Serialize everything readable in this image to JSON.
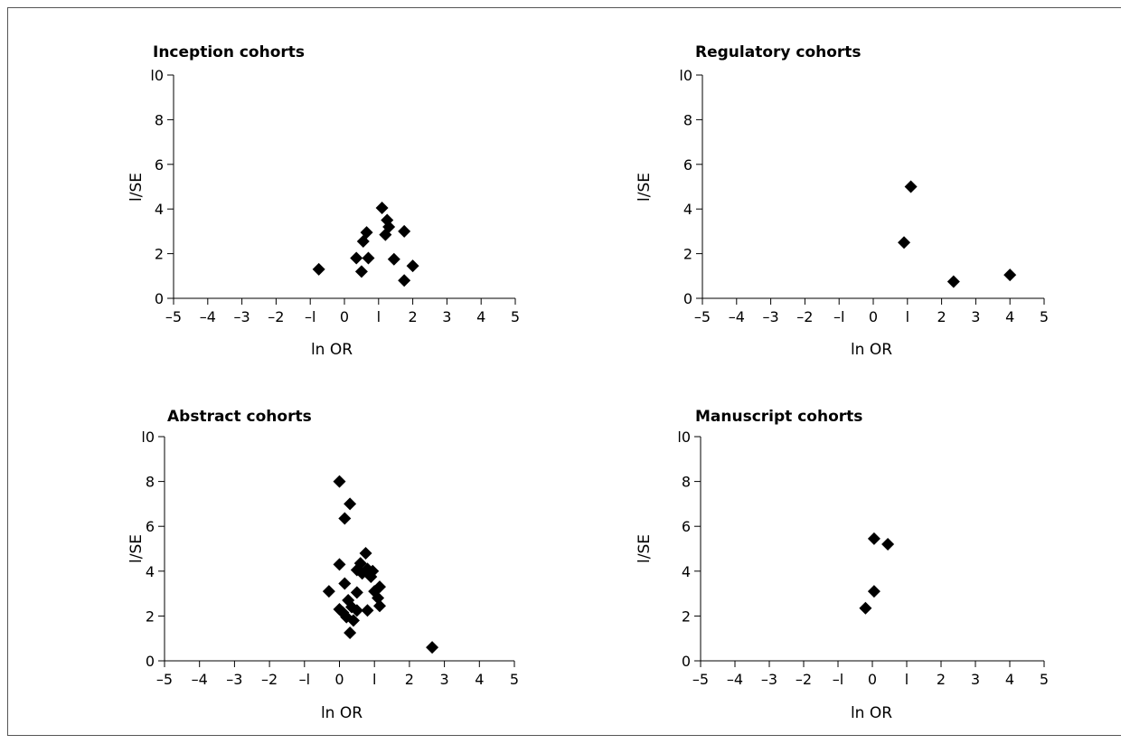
{
  "chart_data": [
    {
      "type": "scatter",
      "title": "Inception cohorts",
      "xlabel": "ln OR",
      "ylabel": "l/SE",
      "xlim": [
        -5,
        5
      ],
      "ylim": [
        0,
        10
      ],
      "xticks": [
        "–5",
        "–4",
        "–3",
        "–2",
        "–l",
        "0",
        "l",
        "2",
        "3",
        "4",
        "5"
      ],
      "yticks": [
        "0",
        "2",
        "4",
        "6",
        "8",
        "l0"
      ],
      "points": [
        {
          "x": -0.75,
          "y": 1.3
        },
        {
          "x": 0.35,
          "y": 1.8
        },
        {
          "x": 0.5,
          "y": 1.2
        },
        {
          "x": 0.55,
          "y": 2.55
        },
        {
          "x": 0.65,
          "y": 2.95
        },
        {
          "x": 0.7,
          "y": 1.8
        },
        {
          "x": 1.1,
          "y": 4.05
        },
        {
          "x": 1.2,
          "y": 2.85
        },
        {
          "x": 1.25,
          "y": 3.5
        },
        {
          "x": 1.3,
          "y": 3.2
        },
        {
          "x": 1.45,
          "y": 1.75
        },
        {
          "x": 1.75,
          "y": 3.0
        },
        {
          "x": 1.75,
          "y": 0.8
        },
        {
          "x": 2.0,
          "y": 1.45
        }
      ]
    },
    {
      "type": "scatter",
      "title": "Regulatory cohorts",
      "xlabel": "ln OR",
      "ylabel": "l/SE",
      "xlim": [
        -5,
        5
      ],
      "ylim": [
        0,
        10
      ],
      "xticks": [
        "–5",
        "–4",
        "–3",
        "–2",
        "–l",
        "0",
        "l",
        "2",
        "3",
        "4",
        "5"
      ],
      "yticks": [
        "0",
        "2",
        "4",
        "6",
        "8",
        "l0"
      ],
      "points": [
        {
          "x": 0.9,
          "y": 2.5
        },
        {
          "x": 1.1,
          "y": 5.0
        },
        {
          "x": 2.35,
          "y": 0.75
        },
        {
          "x": 4.0,
          "y": 1.05
        }
      ]
    },
    {
      "type": "scatter",
      "title": "Abstract cohorts",
      "xlabel": "ln  OR",
      "ylabel": "l/SE",
      "xlim": [
        -5,
        5
      ],
      "ylim": [
        0,
        10
      ],
      "xticks": [
        "–5",
        "–4",
        "–3",
        "–2",
        "–l",
        "0",
        "l",
        "2",
        "3",
        "4",
        "5"
      ],
      "yticks": [
        "0",
        "2",
        "4",
        "6",
        "8",
        "l0"
      ],
      "points": [
        {
          "x": 0.0,
          "y": 8.0
        },
        {
          "x": 0.3,
          "y": 7.0
        },
        {
          "x": 0.15,
          "y": 6.35
        },
        {
          "x": 0.0,
          "y": 4.3
        },
        {
          "x": 0.15,
          "y": 3.45
        },
        {
          "x": -0.3,
          "y": 3.1
        },
        {
          "x": 0.25,
          "y": 2.7
        },
        {
          "x": 0.0,
          "y": 2.3
        },
        {
          "x": 0.1,
          "y": 2.15
        },
        {
          "x": 0.2,
          "y": 1.95
        },
        {
          "x": 0.35,
          "y": 2.4
        },
        {
          "x": 0.4,
          "y": 1.8
        },
        {
          "x": 0.3,
          "y": 1.25
        },
        {
          "x": 0.5,
          "y": 2.25
        },
        {
          "x": 0.5,
          "y": 3.05
        },
        {
          "x": 0.5,
          "y": 4.05
        },
        {
          "x": 0.6,
          "y": 4.35
        },
        {
          "x": 0.65,
          "y": 3.9
        },
        {
          "x": 0.75,
          "y": 4.8
        },
        {
          "x": 0.8,
          "y": 4.1
        },
        {
          "x": 0.9,
          "y": 3.75
        },
        {
          "x": 0.95,
          "y": 4.0
        },
        {
          "x": 0.8,
          "y": 2.25
        },
        {
          "x": 1.0,
          "y": 3.1
        },
        {
          "x": 1.1,
          "y": 2.8
        },
        {
          "x": 1.15,
          "y": 3.3
        },
        {
          "x": 1.15,
          "y": 2.45
        },
        {
          "x": 2.65,
          "y": 0.6
        }
      ]
    },
    {
      "type": "scatter",
      "title": "Manuscript cohorts",
      "xlabel": "ln OR",
      "ylabel": "l/SE",
      "xlim": [
        -5,
        5
      ],
      "ylim": [
        0,
        10
      ],
      "xticks": [
        "–5",
        "–4",
        "–3",
        "–2",
        "–l",
        "0",
        "l",
        "2",
        "3",
        "4",
        "5"
      ],
      "yticks": [
        "0",
        "2",
        "4",
        "6",
        "8",
        "l0"
      ],
      "points": [
        {
          "x": -0.2,
          "y": 2.35
        },
        {
          "x": 0.05,
          "y": 3.1
        },
        {
          "x": 0.05,
          "y": 5.45
        },
        {
          "x": 0.45,
          "y": 5.2
        }
      ]
    }
  ]
}
